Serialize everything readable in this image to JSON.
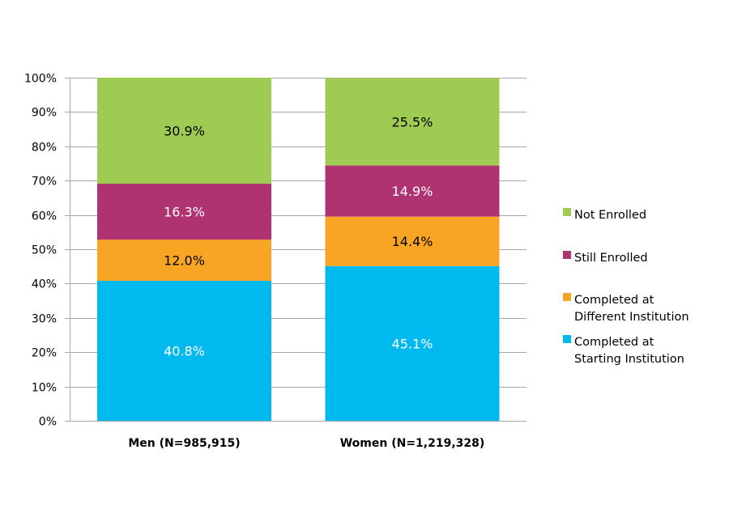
{
  "chart_data": {
    "type": "bar",
    "stacked": true,
    "categories": [
      "Men (N=985,915)",
      "Women (N=1,219,328)"
    ],
    "series": [
      {
        "name": "Completed at Starting Institution",
        "legend_lines": [
          "Completed at",
          "Starting Institution"
        ],
        "values": [
          40.8,
          45.1
        ],
        "labels": [
          "40.8%",
          "45.1%"
        ],
        "color": "#00B9EF",
        "label_color": "#FFFFFF"
      },
      {
        "name": "Completed at Different Institution",
        "legend_lines": [
          "Completed at",
          "Different Institution"
        ],
        "values": [
          12.0,
          14.4
        ],
        "labels": [
          "12.0%",
          "14.4%"
        ],
        "color": "#F8A526",
        "label_color": "#000000"
      },
      {
        "name": "Still Enrolled",
        "legend_lines": [
          "Still Enrolled"
        ],
        "values": [
          16.3,
          14.9
        ],
        "labels": [
          "16.3%",
          "14.9%"
        ],
        "color": "#AE3370",
        "label_color": "#FFFFFF"
      },
      {
        "name": "Not Enrolled",
        "legend_lines": [
          "Not Enrolled"
        ],
        "values": [
          30.9,
          25.5
        ],
        "labels": [
          "30.9%",
          "25.5%"
        ],
        "color": "#A0CB52",
        "label_color": "#000000"
      }
    ],
    "yticks": [
      "0%",
      "10%",
      "20%",
      "30%",
      "40%",
      "50%",
      "60%",
      "70%",
      "80%",
      "90%",
      "100%"
    ],
    "ylim": [
      0,
      100
    ],
    "grid": true,
    "legend_position": "right",
    "title": "",
    "xlabel": "",
    "ylabel": ""
  }
}
